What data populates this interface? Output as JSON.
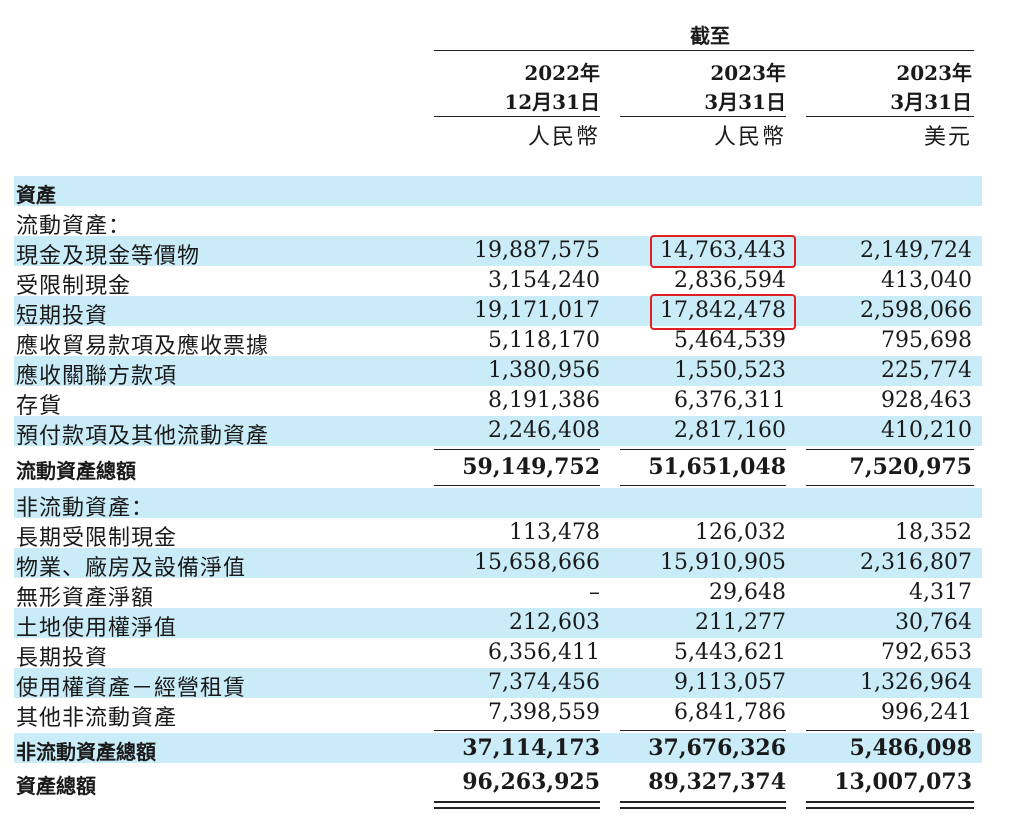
{
  "header": {
    "period": "截至",
    "columns": [
      {
        "year": "2022年",
        "date": "12月31日",
        "currency": "人民幣"
      },
      {
        "year": "2023年",
        "date": "3月31日",
        "currency": "人民幣"
      },
      {
        "year": "2023年",
        "date": "3月31日",
        "currency": "美元"
      }
    ]
  },
  "rows": [
    {
      "label": "資產",
      "values": [
        "",
        "",
        ""
      ]
    },
    {
      "label": "流動資產：",
      "values": [
        "",
        "",
        ""
      ]
    },
    {
      "label": "現金及現金等價物",
      "values": [
        "19,887,575",
        "14,763,443",
        "2,149,724"
      ]
    },
    {
      "label": "受限制現金",
      "values": [
        "3,154,240",
        "2,836,594",
        "413,040"
      ]
    },
    {
      "label": "短期投資",
      "values": [
        "19,171,017",
        "17,842,478",
        "2,598,066"
      ]
    },
    {
      "label": "應收貿易款項及應收票據",
      "values": [
        "5,118,170",
        "5,464,539",
        "795,698"
      ]
    },
    {
      "label": "應收關聯方款項",
      "values": [
        "1,380,956",
        "1,550,523",
        "225,774"
      ]
    },
    {
      "label": "存貨",
      "values": [
        "8,191,386",
        "6,376,311",
        "928,463"
      ]
    },
    {
      "label": "預付款項及其他流動資產",
      "values": [
        "2,246,408",
        "2,817,160",
        "410,210"
      ]
    },
    {
      "label": "流動資產總額",
      "values": [
        "59,149,752",
        "51,651,048",
        "7,520,975"
      ]
    },
    {
      "label": "非流動資產：",
      "values": [
        "",
        "",
        ""
      ]
    },
    {
      "label": "長期受限制現金",
      "values": [
        "113,478",
        "126,032",
        "18,352"
      ]
    },
    {
      "label": "物業、廠房及設備淨值",
      "values": [
        "15,658,666",
        "15,910,905",
        "2,316,807"
      ]
    },
    {
      "label": "無形資產淨額",
      "values": [
        "–",
        "29,648",
        "4,317"
      ]
    },
    {
      "label": "土地使用權淨值",
      "values": [
        "212,603",
        "211,277",
        "30,764"
      ]
    },
    {
      "label": "長期投資",
      "values": [
        "6,356,411",
        "5,443,621",
        "792,653"
      ]
    },
    {
      "label": "使用權資產－經營租賃",
      "values": [
        "7,374,456",
        "9,113,057",
        "1,326,964"
      ]
    },
    {
      "label": "其他非流動資產",
      "values": [
        "7,398,559",
        "6,841,786",
        "996,241"
      ]
    },
    {
      "label": "非流動資產總額",
      "values": [
        "37,114,173",
        "37,676,326",
        "5,486,098"
      ]
    },
    {
      "label": "資產總額",
      "values": [
        "96,263,925",
        "89,327,374",
        "13,007,073"
      ]
    }
  ],
  "highlight_color": "#e02020"
}
